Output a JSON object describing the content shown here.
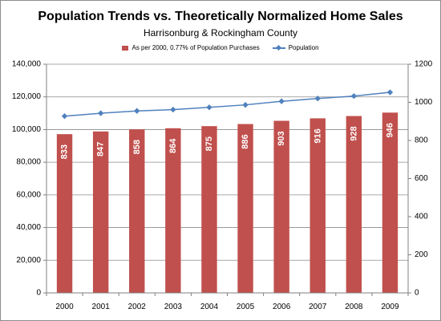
{
  "chart_data": {
    "type": "bar",
    "title": "Population Trends vs. Theoretically Normalized Home Sales",
    "subtitle": "Harrisonburg & Rockingham County",
    "categories": [
      "2000",
      "2001",
      "2002",
      "2003",
      "2004",
      "2005",
      "2006",
      "2007",
      "2008",
      "2009"
    ],
    "series": [
      {
        "name": "As per 2000, 0.77% of Population Purchases",
        "type": "bar",
        "axis": "right",
        "color": "#c0504d",
        "values": [
          833,
          847,
          858,
          864,
          875,
          886,
          903,
          916,
          928,
          946
        ]
      },
      {
        "name": "Population",
        "type": "line",
        "axis": "left",
        "color": "#4f81bd",
        "values": [
          108200,
          110000,
          111400,
          112200,
          113600,
          115100,
          117300,
          119000,
          120500,
          122800
        ]
      }
    ],
    "y_left": {
      "lim": [
        0,
        140000
      ],
      "ticks": [
        0,
        20000,
        40000,
        60000,
        80000,
        100000,
        120000,
        140000
      ],
      "tick_labels": [
        "0",
        "20,000",
        "40,000",
        "60,000",
        "80,000",
        "100,000",
        "120,000",
        "140,000"
      ]
    },
    "y_right": {
      "lim": [
        0,
        1200
      ],
      "ticks": [
        0,
        200,
        400,
        600,
        800,
        1000,
        1200
      ],
      "tick_labels": [
        "0",
        "200",
        "400",
        "600",
        "800",
        "1000",
        "1200"
      ]
    },
    "grid": true,
    "legend_position": "top"
  }
}
